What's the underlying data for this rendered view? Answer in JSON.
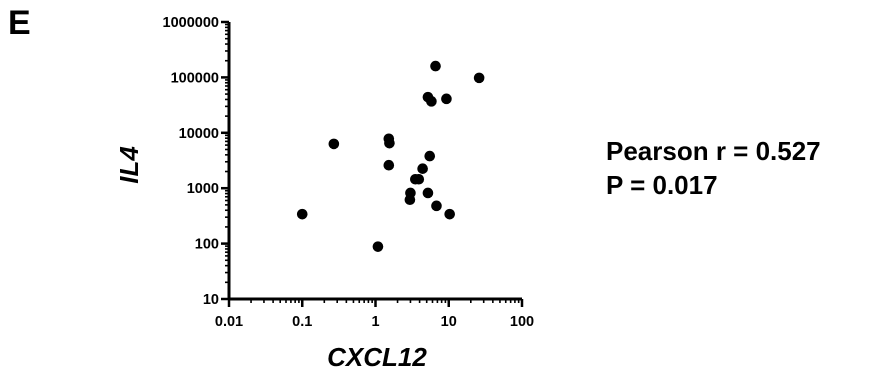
{
  "panel_letter": "E",
  "stats": {
    "pearson": "Pearson r = 0.527",
    "p_value": "P = 0.017"
  },
  "chart_data": {
    "type": "scatter",
    "xlabel": "CXCL12",
    "ylabel": "IL4",
    "x_scale": "log",
    "y_scale": "log",
    "xlim": [
      0.01,
      100
    ],
    "ylim": [
      10,
      1000000
    ],
    "x_ticks": [
      "0.01",
      "0.1",
      "1",
      "10",
      "100"
    ],
    "y_ticks": [
      "10",
      "100",
      "1000",
      "10000",
      "100000",
      "1000000"
    ],
    "marker_color": "#000000",
    "points": [
      {
        "x": 0.1,
        "y": 340
      },
      {
        "x": 0.27,
        "y": 6300
      },
      {
        "x": 1.08,
        "y": 88
      },
      {
        "x": 1.52,
        "y": 7800
      },
      {
        "x": 1.55,
        "y": 6500
      },
      {
        "x": 1.52,
        "y": 2600
      },
      {
        "x": 3.0,
        "y": 820
      },
      {
        "x": 2.95,
        "y": 620
      },
      {
        "x": 3.5,
        "y": 1450
      },
      {
        "x": 3.9,
        "y": 1450
      },
      {
        "x": 4.4,
        "y": 2250
      },
      {
        "x": 5.2,
        "y": 820
      },
      {
        "x": 5.5,
        "y": 3800
      },
      {
        "x": 5.2,
        "y": 44000
      },
      {
        "x": 5.8,
        "y": 37000
      },
      {
        "x": 6.6,
        "y": 160000
      },
      {
        "x": 6.8,
        "y": 480
      },
      {
        "x": 9.3,
        "y": 41000
      },
      {
        "x": 10.3,
        "y": 340
      },
      {
        "x": 26.0,
        "y": 98000
      }
    ]
  }
}
